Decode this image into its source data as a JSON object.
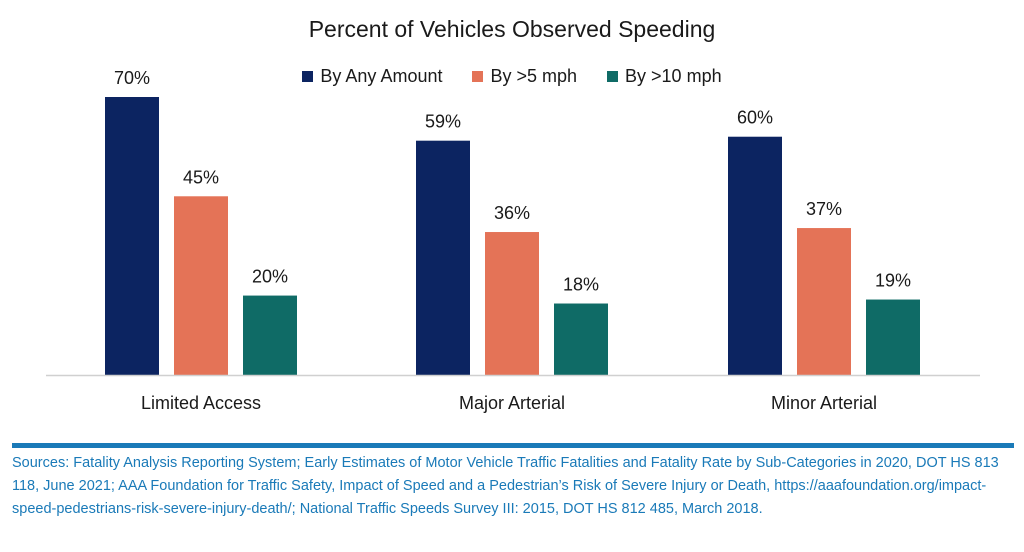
{
  "colors": {
    "series_1": "#0c2461",
    "series_2": "#e47357",
    "series_3": "#0f6b66",
    "axis": "#d0d0d0",
    "source": "#1a7ab8"
  },
  "chart_data": {
    "type": "bar",
    "title": "Percent of Vehicles Observed Speeding",
    "xlabel": "",
    "ylabel": "",
    "ylim": [
      0,
      70
    ],
    "grid": false,
    "legend_position": "top",
    "categories": [
      "Limited Access",
      "Major Arterial",
      "Minor Arterial"
    ],
    "series": [
      {
        "name": "By Any Amount",
        "values": [
          70,
          59,
          60
        ],
        "labels": [
          "70%",
          "59%",
          "60%"
        ]
      },
      {
        "name": "By >5 mph",
        "values": [
          45,
          36,
          37
        ],
        "labels": [
          "45%",
          "36%",
          "37%"
        ]
      },
      {
        "name": "By >10 mph",
        "values": [
          20,
          18,
          19
        ],
        "labels": [
          "20%",
          "18%",
          "19%"
        ]
      }
    ]
  },
  "source_note": "Sources: Fatality Analysis Reporting System; Early Estimates of Motor Vehicle Traffic Fatalities and Fatality Rate by Sub-Categories in 2020, DOT HS 813 118, June 2021; AAA Foundation for Traffic Safety, Impact of Speed and a Pedestrian’s Risk of Severe Injury or Death, https://aaafoundation.org/impact-speed-pedestrians-risk-severe-injury-death/; National Traffic Speeds Survey III: 2015, DOT HS 812 485, March 2018."
}
